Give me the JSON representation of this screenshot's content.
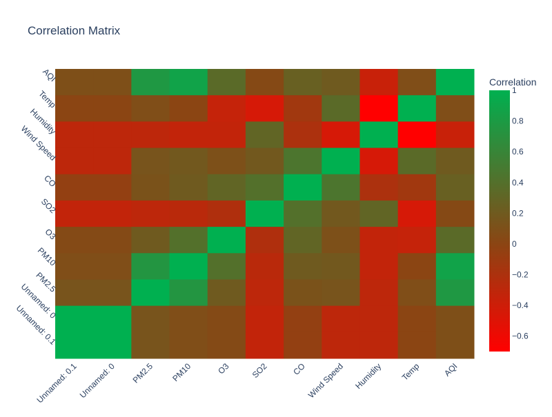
{
  "chart_data": {
    "type": "heatmap",
    "title": "Correlation Matrix",
    "x_labels": [
      "Unnamed: 0.1",
      "Unnamed: 0",
      "PM2.5",
      "PM10",
      "O3",
      "SO2",
      "CO",
      "Wind Speed",
      "Humidity",
      "Temp",
      "AQI"
    ],
    "y_labels": [
      "AQI",
      "Temp",
      "Humidity",
      "Wind Speed",
      "CO",
      "SO2",
      "O3",
      "PM10",
      "PM2.5",
      "Unnamed: 0",
      "Unnamed: 0.1"
    ],
    "values": [
      [
        0.09,
        0.09,
        0.78,
        0.88,
        0.35,
        0.04,
        0.25,
        0.2,
        -0.37,
        0.08,
        1.0
      ],
      [
        0.0,
        0.0,
        0.08,
        0.0,
        -0.35,
        -0.45,
        -0.13,
        0.35,
        -0.7,
        1.0,
        0.08
      ],
      [
        -0.3,
        -0.3,
        -0.3,
        -0.33,
        -0.33,
        0.3,
        -0.2,
        -0.45,
        1.0,
        -0.7,
        -0.37
      ],
      [
        -0.3,
        -0.3,
        0.14,
        0.18,
        0.1,
        0.18,
        0.45,
        1.0,
        -0.45,
        0.35,
        0.2
      ],
      [
        -0.05,
        -0.05,
        0.12,
        0.2,
        0.3,
        0.4,
        1.0,
        0.45,
        -0.2,
        -0.13,
        0.25
      ],
      [
        -0.33,
        -0.33,
        -0.3,
        -0.28,
        -0.22,
        1.0,
        0.4,
        0.18,
        0.3,
        -0.45,
        0.04
      ],
      [
        0.05,
        0.05,
        0.2,
        0.4,
        1.0,
        -0.22,
        0.3,
        0.1,
        -0.33,
        -0.35,
        0.35
      ],
      [
        0.08,
        0.08,
        0.75,
        1.0,
        0.4,
        -0.28,
        0.2,
        0.18,
        -0.33,
        0.0,
        0.88
      ],
      [
        0.14,
        0.14,
        1.0,
        0.75,
        0.2,
        -0.3,
        0.12,
        0.14,
        -0.3,
        0.08,
        0.78
      ],
      [
        1.0,
        1.0,
        0.14,
        0.08,
        0.05,
        -0.33,
        -0.05,
        -0.3,
        -0.3,
        0.0,
        0.09
      ],
      [
        1.0,
        1.0,
        0.14,
        0.08,
        0.05,
        -0.33,
        -0.05,
        -0.3,
        -0.3,
        0.0,
        0.09
      ]
    ],
    "zmin": -0.7,
    "zmax": 1.0,
    "colorscale": [
      "#ff0000",
      "#00b050"
    ],
    "colorbar": {
      "title": "Correlation",
      "ticks": [
        "1",
        "0.8",
        "0.6",
        "0.4",
        "0.2",
        "0",
        "−0.2",
        "−0.4",
        "−0.6"
      ],
      "tick_values": [
        1,
        0.8,
        0.6,
        0.4,
        0.2,
        0,
        -0.2,
        -0.4,
        -0.6
      ]
    }
  }
}
